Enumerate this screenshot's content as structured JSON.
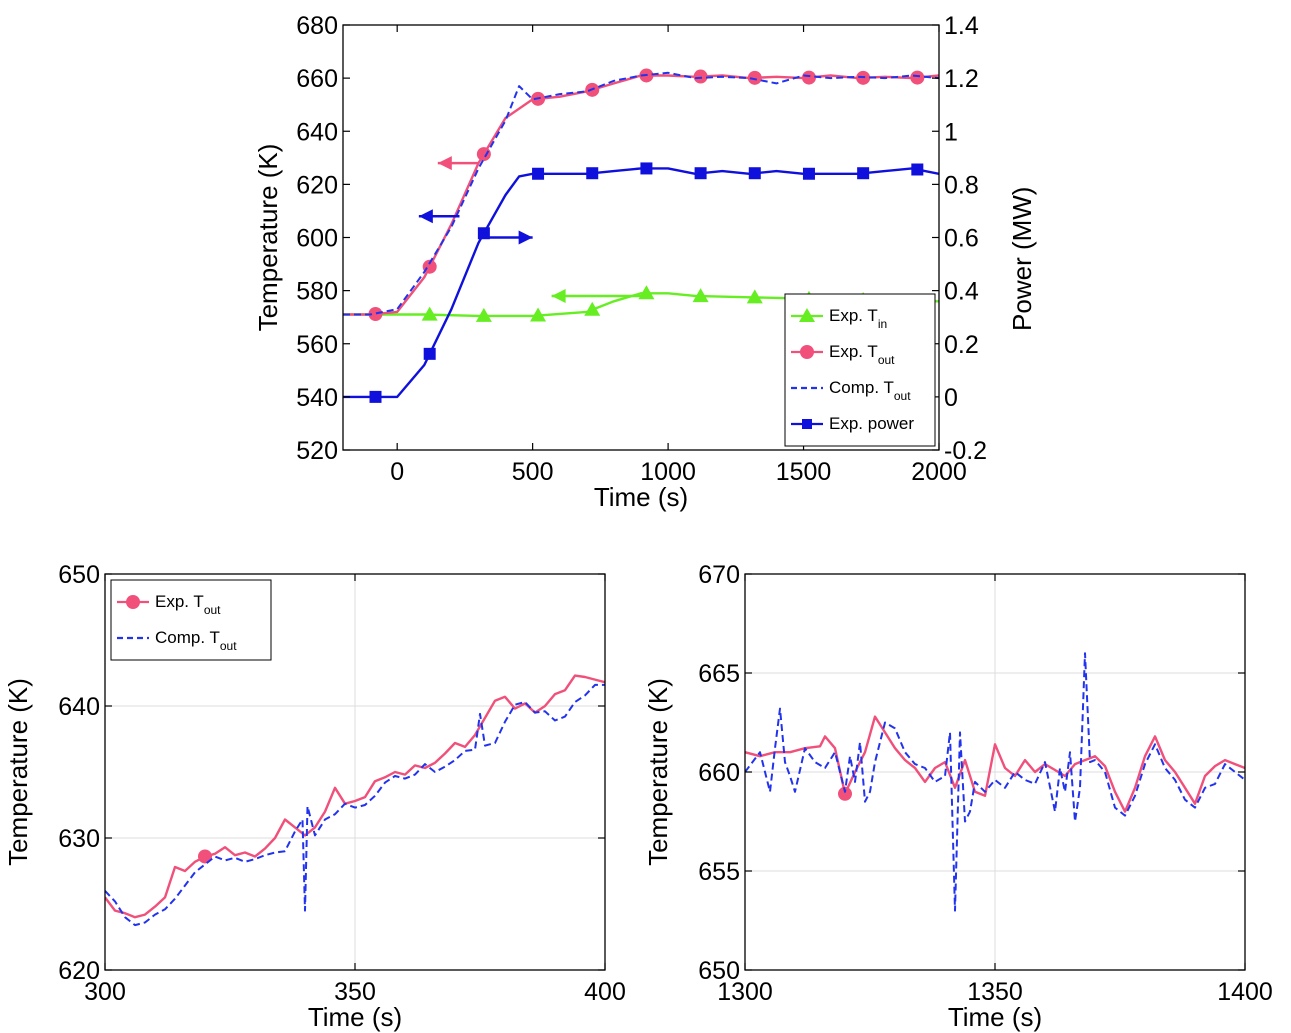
{
  "chart_data": [
    {
      "type": "line",
      "xlabel": "Time (s)",
      "ylabel": "Temperature (K)",
      "y2label": "Power (MW)",
      "xlim": [
        -200,
        2000
      ],
      "ylim": [
        520,
        680
      ],
      "y2lim": [
        -0.2,
        1.4
      ],
      "xticks": [
        "0",
        "500",
        "1000",
        "1500",
        "2000"
      ],
      "yticks": [
        "520",
        "540",
        "560",
        "580",
        "600",
        "620",
        "640",
        "660",
        "680"
      ],
      "y2ticks": [
        "-0.2",
        "0",
        "0.2",
        "0.4",
        "0.6",
        "0.8",
        "1",
        "1.2",
        "1.4"
      ],
      "grid": false,
      "legend": "bottom-right",
      "series": [
        {
          "name": "Exp. T",
          "sub": "in",
          "axis": "left",
          "color": "#66ee22",
          "marker": "triangle",
          "x": [
            -200,
            0,
            100,
            300,
            500,
            700,
            800,
            900,
            1000,
            1100,
            1300,
            1500,
            1700,
            1900,
            2000
          ],
          "y": [
            571,
            571,
            571,
            570.5,
            570.5,
            572,
            576,
            579,
            579,
            578,
            577.5,
            577,
            576.5,
            576,
            576
          ],
          "markers_x": [
            120,
            320,
            520,
            720,
            920,
            1120,
            1320,
            1520,
            1720,
            1920
          ]
        },
        {
          "name": "Exp. T",
          "sub": "out",
          "axis": "left",
          "color": "#f0507a",
          "marker": "circle",
          "x": [
            -200,
            -100,
            0,
            100,
            200,
            300,
            400,
            500,
            600,
            700,
            800,
            900,
            1000,
            1100,
            1200,
            1300,
            1400,
            1500,
            1600,
            1700,
            1800,
            1900,
            2000
          ],
          "y": [
            571,
            571,
            572,
            585,
            605,
            628,
            645,
            652,
            653,
            655,
            658,
            661,
            661,
            660.5,
            661,
            660,
            660.5,
            660,
            661,
            660,
            660.5,
            660,
            661
          ],
          "markers_x": [
            -80,
            120,
            320,
            520,
            720,
            920,
            1120,
            1320,
            1520,
            1720,
            1920
          ]
        },
        {
          "name": "Comp. T",
          "sub": "out",
          "axis": "left",
          "color": "#2233ee",
          "dashed": true,
          "x": [
            -200,
            -100,
            0,
            100,
            200,
            300,
            400,
            450,
            500,
            600,
            700,
            800,
            900,
            1000,
            1100,
            1200,
            1300,
            1400,
            1500,
            1600,
            1700,
            1800,
            1900,
            2000
          ],
          "y": [
            571,
            571,
            573,
            587,
            604,
            626,
            644,
            657,
            652,
            654,
            655,
            659,
            661,
            662,
            660,
            660.5,
            660,
            658,
            661,
            660,
            660.5,
            660,
            661,
            660
          ]
        },
        {
          "name": "Exp. power",
          "axis": "right",
          "color": "#1010dd",
          "marker": "square",
          "x": [
            -200,
            0,
            100,
            200,
            300,
            400,
            450,
            500,
            600,
            700,
            800,
            900,
            1000,
            1100,
            1200,
            1300,
            1400,
            1500,
            1600,
            1700,
            1800,
            1900,
            2000
          ],
          "y": [
            0,
            0,
            0.12,
            0.33,
            0.58,
            0.76,
            0.83,
            0.84,
            0.84,
            0.84,
            0.85,
            0.86,
            0.86,
            0.84,
            0.85,
            0.84,
            0.85,
            0.84,
            0.84,
            0.84,
            0.85,
            0.86,
            0.84
          ],
          "markers_x": [
            -80,
            120,
            320,
            520,
            720,
            920,
            1120,
            1320,
            1520,
            1720,
            1920
          ]
        }
      ],
      "annotations": [
        {
          "type": "arrow",
          "direction": "left",
          "x": [
            150,
            300
          ],
          "y": 628,
          "color": "#f0507a"
        },
        {
          "type": "arrow",
          "direction": "left",
          "x": [
            80,
            230
          ],
          "y": 608,
          "color": "#1010dd"
        },
        {
          "type": "arrow",
          "direction": "right",
          "x": [
            310,
            500
          ],
          "y": 0.6,
          "axis": "right",
          "color": "#1010dd"
        },
        {
          "type": "arrow",
          "direction": "left",
          "x": [
            570,
            910
          ],
          "y": 578,
          "color": "#66ee22"
        }
      ]
    },
    {
      "type": "line",
      "xlabel": "Time (s)",
      "ylabel": "Temperature (K)",
      "xlim": [
        300,
        400
      ],
      "ylim": [
        620,
        650
      ],
      "xticks": [
        "300",
        "350",
        "400"
      ],
      "yticks": [
        "620",
        "630",
        "640",
        "650"
      ],
      "grid": true,
      "legend": "top-left",
      "series": [
        {
          "name": "Exp. T",
          "sub": "out",
          "color": "#f0507a",
          "marker": "circle",
          "x": [
            300,
            302,
            304,
            306,
            308,
            310,
            312,
            314,
            316,
            318,
            320,
            322,
            324,
            326,
            328,
            330,
            332,
            334,
            336,
            338,
            340,
            342,
            344,
            346,
            348,
            350,
            352,
            354,
            356,
            358,
            360,
            362,
            364,
            366,
            368,
            370,
            372,
            374,
            376,
            378,
            380,
            382,
            384,
            386,
            388,
            390,
            392,
            394,
            396,
            398,
            400
          ],
          "y": [
            625.5,
            624.5,
            624.3,
            624.0,
            624.2,
            624.8,
            625.5,
            627.8,
            627.5,
            628.2,
            628.6,
            628.8,
            629.3,
            628.7,
            628.9,
            628.6,
            629.2,
            630.0,
            631.4,
            630.8,
            630.2,
            630.8,
            632.0,
            633.8,
            632.6,
            632.8,
            633.1,
            634.3,
            634.6,
            635.0,
            634.8,
            635.5,
            635.3,
            635.7,
            636.4,
            637.2,
            636.9,
            637.8,
            639.1,
            640.4,
            640.7,
            639.8,
            640.2,
            639.5,
            640.0,
            640.9,
            641.2,
            642.3,
            642.2,
            642.0,
            641.8
          ],
          "markers_x": [
            320
          ]
        },
        {
          "name": "Comp. T",
          "sub": "out",
          "color": "#2233ee",
          "dashed": true,
          "x": [
            300,
            302,
            304,
            306,
            308,
            310,
            312,
            314,
            316,
            318,
            320,
            322,
            324,
            326,
            328,
            330,
            332,
            334,
            336,
            338,
            339.5,
            340,
            340.5,
            342,
            344,
            346,
            348,
            350,
            352,
            354,
            356,
            358,
            360,
            362,
            364,
            366,
            368,
            370,
            372,
            374,
            375,
            376,
            378,
            380,
            382,
            384,
            386,
            388,
            390,
            392,
            394,
            396,
            398,
            400
          ],
          "y": [
            626.0,
            625.2,
            624.0,
            623.4,
            623.6,
            624.2,
            624.6,
            625.4,
            626.4,
            627.4,
            628.0,
            628.6,
            628.3,
            628.5,
            628.2,
            628.4,
            628.7,
            628.9,
            629.0,
            630.5,
            631.4,
            624.5,
            632.4,
            630.2,
            631.4,
            631.8,
            632.6,
            632.3,
            632.5,
            633.2,
            634.2,
            634.7,
            634.5,
            634.8,
            635.6,
            635.0,
            635.4,
            635.9,
            636.6,
            636.7,
            639.4,
            637.0,
            637.2,
            638.8,
            640.1,
            640.3,
            639.5,
            639.6,
            638.9,
            639.2,
            640.3,
            640.8,
            641.6,
            641.6
          ]
        }
      ]
    },
    {
      "type": "line",
      "xlabel": "Time (s)",
      "ylabel": "Temperature (K)",
      "xlim": [
        1300,
        1400
      ],
      "ylim": [
        650,
        670
      ],
      "xticks": [
        "1300",
        "1350",
        "1400"
      ],
      "yticks": [
        "650",
        "655",
        "660",
        "665",
        "670"
      ],
      "grid": true,
      "legend": "none",
      "series": [
        {
          "name": "Exp. T",
          "sub": "out",
          "color": "#f0507a",
          "marker": "circle",
          "x": [
            1300,
            1303,
            1306,
            1309,
            1312,
            1315,
            1316,
            1318,
            1320,
            1322,
            1324,
            1326,
            1328,
            1330,
            1332,
            1334,
            1336,
            1338,
            1340,
            1342,
            1344,
            1346,
            1348,
            1350,
            1352,
            1354,
            1356,
            1358,
            1360,
            1362,
            1364,
            1366,
            1368,
            1370,
            1372,
            1374,
            1376,
            1378,
            1380,
            1382,
            1384,
            1386,
            1388,
            1390,
            1392,
            1394,
            1396,
            1398,
            1400
          ],
          "y": [
            661.0,
            660.8,
            661.0,
            661.0,
            661.2,
            661.3,
            661.8,
            661.2,
            658.9,
            660.0,
            661.0,
            662.8,
            662.0,
            661.2,
            660.6,
            660.2,
            659.5,
            660.2,
            660.5,
            659.2,
            660.6,
            659.0,
            658.8,
            661.4,
            660.2,
            659.8,
            660.6,
            660.0,
            660.4,
            660.1,
            659.8,
            660.4,
            660.6,
            660.8,
            660.3,
            659.0,
            658.0,
            659.2,
            660.8,
            661.8,
            660.6,
            660.0,
            659.2,
            658.4,
            659.8,
            660.3,
            660.6,
            660.4,
            660.2
          ],
          "markers_x": [
            1320
          ]
        },
        {
          "name": "Comp. T",
          "sub": "out",
          "color": "#2233ee",
          "dashed": true,
          "x": [
            1300,
            1303,
            1305,
            1306,
            1307,
            1308,
            1309,
            1310,
            1312,
            1314,
            1316,
            1318,
            1320,
            1321,
            1322,
            1323,
            1324,
            1325,
            1326,
            1328,
            1330,
            1332,
            1334,
            1336,
            1338,
            1340,
            1341,
            1342,
            1343,
            1344,
            1345,
            1346,
            1348,
            1350,
            1352,
            1354,
            1356,
            1358,
            1360,
            1362,
            1363,
            1364,
            1365,
            1366,
            1367,
            1368,
            1369,
            1370,
            1372,
            1374,
            1376,
            1378,
            1380,
            1382,
            1384,
            1386,
            1388,
            1390,
            1392,
            1394,
            1396,
            1398,
            1400
          ],
          "y": [
            660.0,
            661.0,
            659.0,
            661.2,
            663.2,
            660.5,
            659.8,
            659.0,
            661.2,
            660.5,
            660.2,
            661.0,
            659.0,
            660.8,
            659.5,
            661.5,
            658.5,
            659.0,
            660.5,
            662.5,
            662.2,
            661.0,
            660.4,
            660.2,
            659.5,
            659.8,
            662.0,
            653.0,
            662.0,
            657.5,
            658.0,
            659.5,
            659.0,
            659.6,
            659.2,
            660.0,
            659.6,
            659.4,
            660.5,
            658.0,
            660.2,
            659.0,
            661.0,
            657.5,
            659.2,
            666.0,
            660.5,
            660.6,
            660.0,
            658.2,
            657.8,
            658.8,
            660.4,
            661.4,
            660.2,
            659.6,
            658.6,
            658.2,
            659.2,
            659.4,
            660.4,
            660.0,
            659.6
          ]
        }
      ]
    }
  ]
}
